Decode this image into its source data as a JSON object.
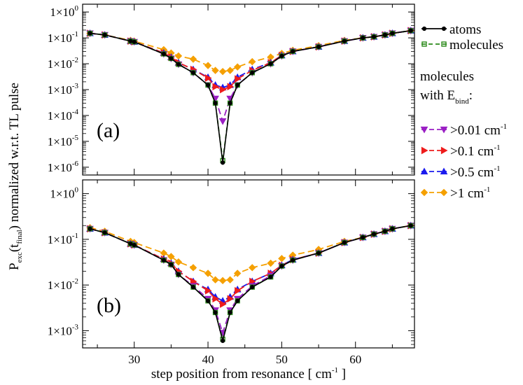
{
  "chart_data": {
    "type": "line",
    "x_label_main": "step position from resonance [ cm",
    "x_label_sup": "-1",
    "x_label_tail": " ]",
    "y_label_main": "P",
    "y_label_sub1": "exc",
    "y_label_paren": "(t",
    "y_label_sub2": "final",
    "y_label_tail": ")  normalized w.r.t. TL pulse",
    "xlim": [
      23,
      68
    ],
    "x_ticks": [
      30,
      40,
      50,
      60
    ],
    "legend": {
      "atoms": "atoms",
      "molecules": "molecules",
      "header_line1": "molecules",
      "header_line2_main": "with E",
      "header_line2_sub": "bind",
      "header_line2_tail": ":",
      "th1_main": ">0.01 cm",
      "th1_sup": "-1",
      "th2_main": ">0.1 cm",
      "th2_sup": "-1",
      "th3_main": ">0.5 cm",
      "th3_sup": "-1",
      "th4_main": ">1 cm",
      "th4_sup": "-1"
    },
    "series_styles": [
      {
        "name": "atoms",
        "color": "#000000",
        "marker": "circle",
        "dash": "none"
      },
      {
        "name": "molecules",
        "color": "#2a8a1a",
        "marker": "square",
        "dash": "6,4"
      },
      {
        "name": ">0.01",
        "color": "#9a1fc4",
        "marker": "tri-down",
        "dash": "9,5"
      },
      {
        "name": ">0.1",
        "color": "#ee1c1c",
        "marker": "tri-right",
        "dash": "9,5"
      },
      {
        "name": ">0.5",
        "color": "#1a1aee",
        "marker": "tri-up",
        "dash": "9,5"
      },
      {
        "name": ">1",
        "color": "#f5a000",
        "marker": "diamond",
        "dash": "9,5"
      }
    ],
    "x": [
      24,
      26,
      29.5,
      30,
      34,
      35,
      36,
      38,
      40,
      41,
      42,
      43,
      44,
      46,
      48.5,
      50,
      51.5,
      55,
      58.5,
      61,
      62.5,
      64,
      65,
      67.5
    ],
    "panels": [
      {
        "label": "(a)",
        "ylim": [
          5e-07,
          2
        ],
        "y_ticks": [
          1e-06,
          1e-05,
          0.0001,
          0.001,
          0.01,
          0.1,
          1
        ],
        "y_tick_exps": [
          "-6",
          "-5",
          "-4",
          "-3",
          "-2",
          "-1",
          "0"
        ],
        "series": [
          {
            "name": "atoms",
            "values": [
              0.15,
              0.13,
              0.075,
              0.07,
              0.024,
              0.016,
              0.0095,
              0.0045,
              0.0015,
              0.0003,
              1.5e-06,
              0.0003,
              0.0015,
              0.0045,
              0.01,
              0.02,
              0.03,
              0.045,
              0.075,
              0.1,
              0.11,
              0.13,
              0.15,
              0.19
            ]
          },
          {
            "name": "molecules",
            "values": [
              0.15,
              0.13,
              0.075,
              0.07,
              0.024,
              0.016,
              0.0095,
              0.0045,
              0.0015,
              0.0003,
              1.8e-06,
              0.0003,
              0.0015,
              0.0045,
              0.01,
              0.02,
              0.03,
              0.045,
              0.075,
              0.1,
              0.11,
              0.13,
              0.15,
              0.19
            ]
          },
          {
            "name": ">0.01",
            "values": [
              0.15,
              0.13,
              0.075,
              0.07,
              0.024,
              0.016,
              0.0095,
              0.0045,
              0.0015,
              0.00045,
              6e-05,
              0.00045,
              0.0015,
              0.0045,
              0.01,
              0.02,
              0.03,
              0.045,
              0.075,
              0.1,
              0.11,
              0.13,
              0.15,
              0.19
            ]
          },
          {
            "name": ">0.1",
            "values": [
              0.15,
              0.13,
              0.075,
              0.07,
              0.026,
              0.018,
              0.011,
              0.006,
              0.0028,
              0.0013,
              0.001,
              0.0013,
              0.0026,
              0.0055,
              0.011,
              0.021,
              0.03,
              0.045,
              0.075,
              0.1,
              0.11,
              0.13,
              0.15,
              0.19
            ]
          },
          {
            "name": ">0.5",
            "values": [
              0.15,
              0.13,
              0.075,
              0.07,
              0.026,
              0.018,
              0.011,
              0.006,
              0.003,
              0.0015,
              0.0012,
              0.0015,
              0.003,
              0.006,
              0.011,
              0.021,
              0.03,
              0.045,
              0.075,
              0.1,
              0.11,
              0.13,
              0.15,
              0.19
            ]
          },
          {
            "name": ">1",
            "values": [
              0.15,
              0.13,
              0.08,
              0.075,
              0.035,
              0.026,
              0.02,
              0.015,
              0.0085,
              0.0055,
              0.005,
              0.0055,
              0.0075,
              0.012,
              0.018,
              0.025,
              0.033,
              0.05,
              0.08,
              0.1,
              0.11,
              0.13,
              0.15,
              0.19
            ]
          }
        ]
      },
      {
        "label": "(b)",
        "ylim": [
          0.00042,
          2
        ],
        "y_ticks": [
          0.001,
          0.01,
          0.1,
          1
        ],
        "y_tick_exps": [
          "-3",
          "-2",
          "-1",
          "0"
        ],
        "series": [
          {
            "name": "atoms",
            "values": [
              0.17,
              0.14,
              0.08,
              0.075,
              0.035,
              0.028,
              0.017,
              0.009,
              0.0045,
              0.0025,
              0.0006,
              0.0025,
              0.0045,
              0.009,
              0.015,
              0.026,
              0.035,
              0.05,
              0.085,
              0.11,
              0.13,
              0.15,
              0.17,
              0.2
            ]
          },
          {
            "name": "molecules",
            "values": [
              0.17,
              0.14,
              0.08,
              0.075,
              0.035,
              0.028,
              0.017,
              0.009,
              0.0045,
              0.0025,
              0.00065,
              0.0025,
              0.0045,
              0.009,
              0.015,
              0.026,
              0.035,
              0.05,
              0.085,
              0.11,
              0.13,
              0.15,
              0.17,
              0.2
            ]
          },
          {
            "name": ">0.01",
            "values": [
              0.17,
              0.14,
              0.08,
              0.075,
              0.035,
              0.028,
              0.017,
              0.0095,
              0.005,
              0.0028,
              0.0009,
              0.0028,
              0.005,
              0.0095,
              0.016,
              0.026,
              0.035,
              0.05,
              0.085,
              0.11,
              0.13,
              0.15,
              0.17,
              0.2
            ]
          },
          {
            "name": ">0.1",
            "values": [
              0.17,
              0.14,
              0.08,
              0.075,
              0.037,
              0.03,
              0.02,
              0.012,
              0.0075,
              0.005,
              0.0038,
              0.005,
              0.0075,
              0.012,
              0.018,
              0.027,
              0.036,
              0.05,
              0.085,
              0.11,
              0.13,
              0.15,
              0.17,
              0.2
            ]
          },
          {
            "name": ">0.5",
            "values": [
              0.17,
              0.14,
              0.08,
              0.075,
              0.037,
              0.03,
              0.02,
              0.012,
              0.008,
              0.0055,
              0.0045,
              0.0055,
              0.008,
              0.012,
              0.018,
              0.027,
              0.036,
              0.05,
              0.085,
              0.11,
              0.13,
              0.15,
              0.17,
              0.2
            ]
          },
          {
            "name": ">1",
            "values": [
              0.18,
              0.15,
              0.09,
              0.085,
              0.05,
              0.042,
              0.032,
              0.024,
              0.018,
              0.013,
              0.0125,
              0.013,
              0.018,
              0.024,
              0.03,
              0.038,
              0.045,
              0.06,
              0.09,
              0.11,
              0.13,
              0.15,
              0.17,
              0.2
            ]
          }
        ]
      }
    ]
  }
}
